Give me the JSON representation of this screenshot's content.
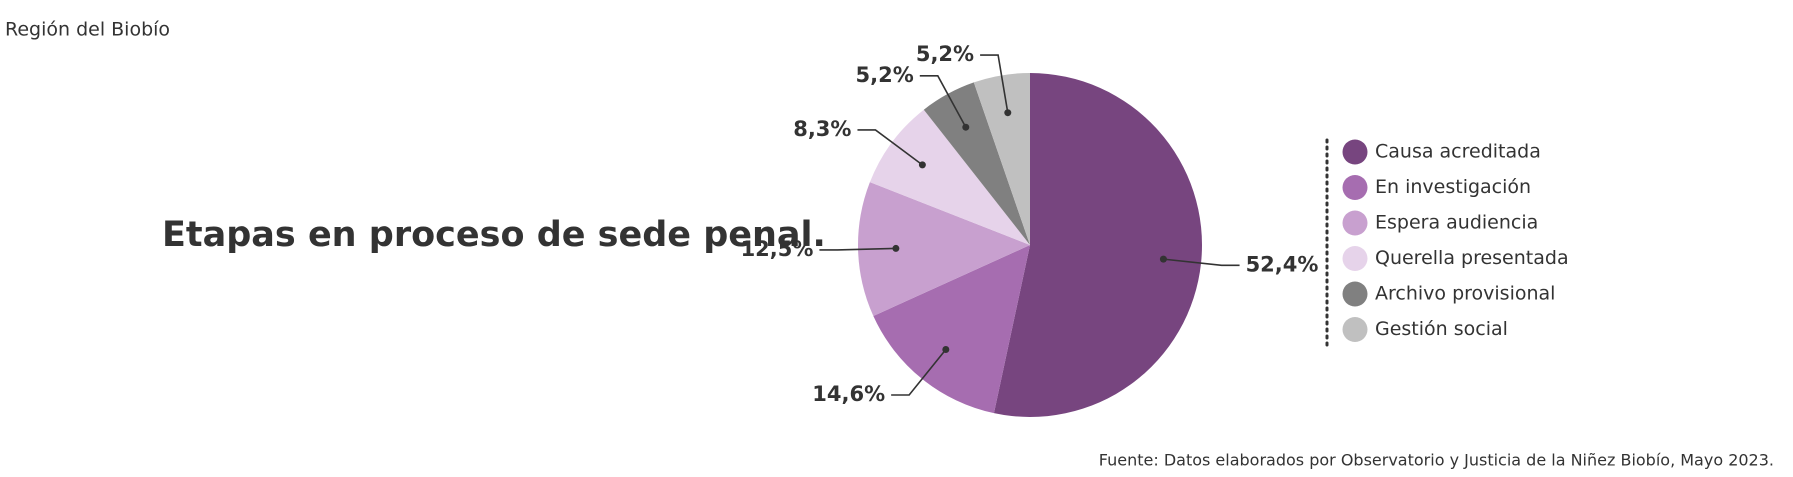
{
  "chart_data": {
    "type": "pie",
    "subtitle": "Región del Biobío",
    "title": "Etapas en proceso de sede penal.",
    "categories": [
      "Causa acreditada",
      "En investigación",
      "Espera audiencia",
      "Querella presentada",
      "Archivo provisional",
      "Gestión social"
    ],
    "values": [
      52.4,
      14.6,
      12.5,
      8.3,
      5.2,
      5.2
    ],
    "value_labels": [
      "52,4%",
      "14,6%",
      "12,5%",
      "8,3%",
      "5,2%",
      "5,2%"
    ],
    "colors": [
      "#77457f",
      "#a66db0",
      "#c8a0cf",
      "#e6d3ea",
      "#808080",
      "#c0c0c0"
    ],
    "source": "Fuente: Datos elaborados por Observatorio y Justicia de la Niñez Biobío, Mayo 2023."
  }
}
